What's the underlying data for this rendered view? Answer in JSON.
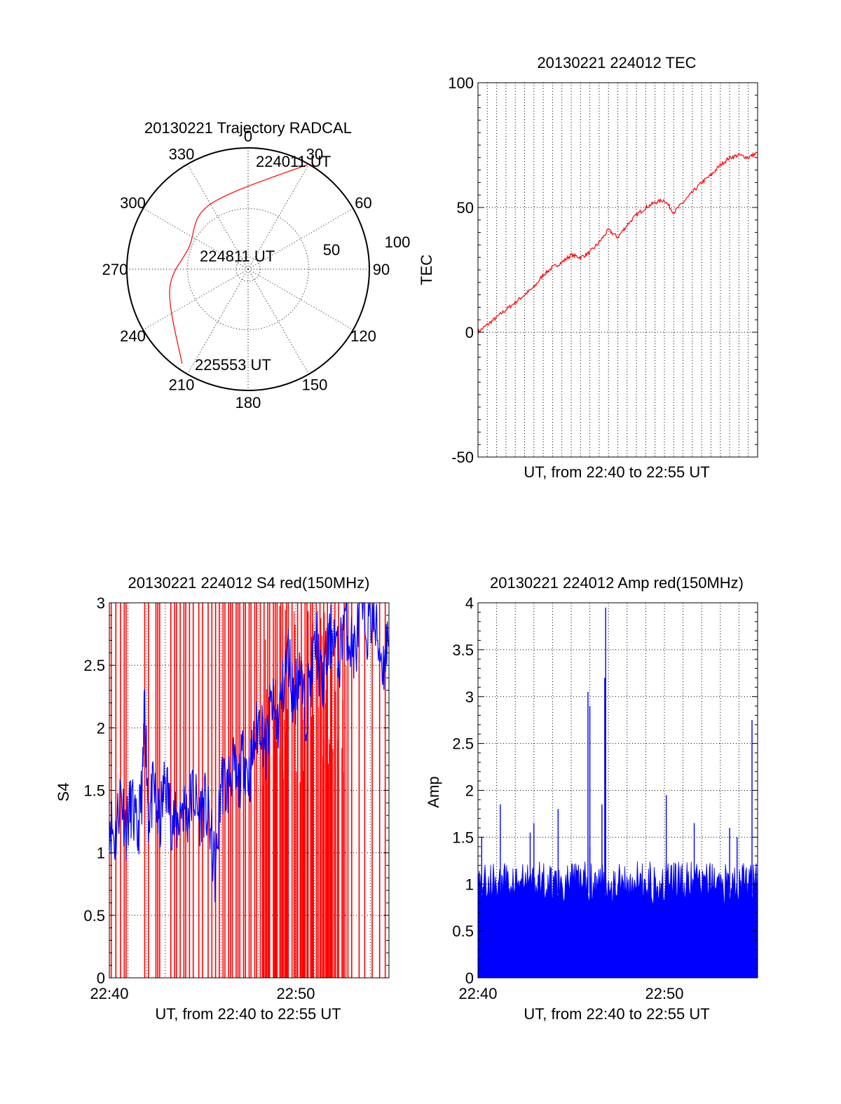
{
  "colors": {
    "trace_red": "#ff0000",
    "trace_blue": "#0000ff",
    "axis": "#000000"
  },
  "chart_data": [
    {
      "type": "polar",
      "title": "20130221 Trajectory RADCAL",
      "azimuth_labels": [
        "0",
        "30",
        "60",
        "90",
        "120",
        "150",
        "180",
        "210",
        "240",
        "270",
        "300",
        "330"
      ],
      "radial_labels": [
        "50",
        "100"
      ],
      "grid": true,
      "annotations": {
        "start": "224011 UT",
        "mid": "224811 UT",
        "end": "225553 UT"
      },
      "series": [
        {
          "color": "#ff0000",
          "points": [
            {
              "az": 30,
              "r": 100
            },
            {
              "az": 330,
              "r": 62
            },
            {
              "az": 290,
              "r": 52
            },
            {
              "az": 255,
              "r": 67
            },
            {
              "az": 215,
              "r": 95
            }
          ]
        }
      ]
    },
    {
      "type": "line",
      "title": "20130221 224012 TEC",
      "xlabel": "UT, from 22:40 to 22:55 UT",
      "ylabel": "TEC",
      "xlim": [
        0,
        15
      ],
      "ylim": [
        -50,
        100
      ],
      "yticks": [
        "-50",
        "0",
        "50",
        "100"
      ],
      "grid": true,
      "series": [
        {
          "color": "#ff0000",
          "x": [
            0,
            0.5,
            1,
            1.5,
            2,
            2.5,
            3,
            3.5,
            4,
            4.5,
            5,
            5.5,
            6,
            6.5,
            7,
            7.5,
            8,
            8.5,
            9,
            9.5,
            10,
            10.5,
            11,
            11.5,
            12,
            12.5,
            13,
            13.5,
            14,
            14.5,
            15
          ],
          "y": [
            0,
            3,
            6,
            9,
            12,
            15,
            18,
            23,
            26,
            28,
            31,
            30,
            32,
            36,
            41,
            38,
            43,
            47,
            50,
            52,
            53,
            48,
            52,
            56,
            60,
            63,
            67,
            70,
            71,
            70,
            72
          ]
        }
      ]
    },
    {
      "type": "line",
      "title": "20130221 224012 S4 red(150MHz)",
      "xlabel": "UT, from 22:40 to 22:55 UT",
      "ylabel": "S4",
      "xlim": [
        0,
        15
      ],
      "ylim": [
        0,
        3
      ],
      "xticks": [
        "22:40",
        "22:50"
      ],
      "yticks": [
        "0",
        "0.5",
        "1",
        "1.5",
        "2",
        "2.5",
        "3"
      ],
      "grid": true,
      "series": [
        {
          "color": "#ff0000",
          "style": "spikes",
          "x": [
            0.1,
            0.35,
            0.6,
            0.8,
            0.9,
            1.9,
            2.1,
            2.5,
            2.6,
            2.7,
            3.3,
            3.5,
            3.6,
            3.8,
            4.0,
            4.1,
            4.3,
            4.5,
            4.8,
            5.0,
            5.3,
            5.5,
            5.7,
            5.9,
            6.1,
            6.2,
            6.4,
            6.5,
            6.6,
            6.8,
            6.9,
            7.0,
            7.2,
            7.3,
            7.5,
            7.6,
            7.8,
            7.9,
            8.1,
            8.3,
            8.5,
            8.6,
            8.8,
            8.9,
            9.0,
            9.2,
            9.3,
            9.5,
            9.6,
            9.8,
            10.1,
            10.3,
            10.5,
            10.6,
            10.8,
            10.9,
            11.1,
            11.3,
            11.5,
            11.7,
            11.9,
            12.1,
            12.3,
            12.6,
            12.8,
            13.0,
            13.4,
            13.7,
            14.1,
            14.5,
            14.8
          ],
          "y": [
            3,
            3,
            3,
            3,
            3,
            3,
            3,
            3,
            3,
            3,
            3,
            3,
            3,
            3,
            3,
            3,
            3,
            3,
            3,
            3,
            3,
            3,
            3,
            3,
            3,
            3,
            3,
            3,
            3,
            3,
            3,
            3,
            3,
            3,
            3,
            3,
            3,
            3,
            3,
            3,
            3,
            3,
            3,
            3,
            3,
            3,
            3,
            3,
            3,
            3,
            3,
            3,
            3,
            3,
            3,
            3,
            3,
            3,
            3,
            3,
            3,
            3,
            3,
            3,
            3,
            3,
            3,
            3,
            3,
            3,
            3
          ]
        },
        {
          "color": "#0000ff",
          "style": "line",
          "x": [
            0,
            0.3,
            0.6,
            0.9,
            1.2,
            1.5,
            1.8,
            1.9,
            2.1,
            2.4,
            2.7,
            3.0,
            3.3,
            3.6,
            3.9,
            4.2,
            4.5,
            4.8,
            5.1,
            5.4,
            5.7,
            6.0,
            6.3,
            6.6,
            6.9,
            7.2,
            7.5,
            7.8,
            8.1,
            8.4,
            8.7,
            9.0,
            9.3,
            9.6,
            9.9,
            10.2,
            10.5,
            10.8,
            11.1,
            11.4,
            11.7,
            12.0,
            12.3,
            12.6,
            12.9,
            13.2,
            13.5,
            13.8,
            14.1,
            14.4,
            14.7,
            15
          ],
          "y": [
            1.3,
            1.1,
            1.5,
            1.2,
            1.4,
            1.1,
            1.6,
            2.2,
            1.3,
            1.5,
            1.2,
            1.6,
            1.3,
            1.2,
            1.4,
            1.3,
            1.5,
            1.3,
            1.4,
            1.2,
            0.8,
            1.6,
            1.5,
            1.7,
            1.5,
            1.8,
            1.6,
            1.9,
            2.1,
            1.8,
            2.2,
            2.0,
            2.3,
            2.6,
            2.2,
            2.5,
            2.1,
            2.4,
            2.7,
            2.3,
            2.6,
            2.8,
            2.5,
            2.9,
            2.7,
            2.6,
            3.0,
            2.8,
            2.9,
            2.7,
            2.5,
            2.8
          ]
        }
      ]
    },
    {
      "type": "line",
      "title": "20130221 224012 Amp red(150MHz)",
      "xlabel": "UT, from 22:40 to 22:55 UT",
      "ylabel": "Amp",
      "xlim": [
        0,
        15
      ],
      "ylim": [
        0,
        4
      ],
      "xticks": [
        "22:40",
        "22:50"
      ],
      "yticks": [
        "0",
        "0.5",
        "1",
        "1.5",
        "2",
        "2.5",
        "3",
        "3.5",
        "4"
      ],
      "grid": true,
      "series": [
        {
          "color": "#0000ff",
          "style": "filled-noise",
          "base_level": 0.95,
          "peaks": [
            {
              "x": 0.2,
              "y": 1.5
            },
            {
              "x": 1.2,
              "y": 1.85
            },
            {
              "x": 2.8,
              "y": 1.55
            },
            {
              "x": 3.0,
              "y": 1.65
            },
            {
              "x": 4.3,
              "y": 1.8
            },
            {
              "x": 6.0,
              "y": 1.4
            },
            {
              "x": 5.9,
              "y": 3.05
            },
            {
              "x": 6.0,
              "y": 2.9
            },
            {
              "x": 6.65,
              "y": 1.85
            },
            {
              "x": 6.85,
              "y": 3.95
            },
            {
              "x": 6.8,
              "y": 3.2
            },
            {
              "x": 10.1,
              "y": 1.95
            },
            {
              "x": 11.6,
              "y": 1.65
            },
            {
              "x": 13.5,
              "y": 1.6
            },
            {
              "x": 13.9,
              "y": 1.5
            },
            {
              "x": 14.7,
              "y": 2.75
            }
          ]
        }
      ]
    }
  ]
}
